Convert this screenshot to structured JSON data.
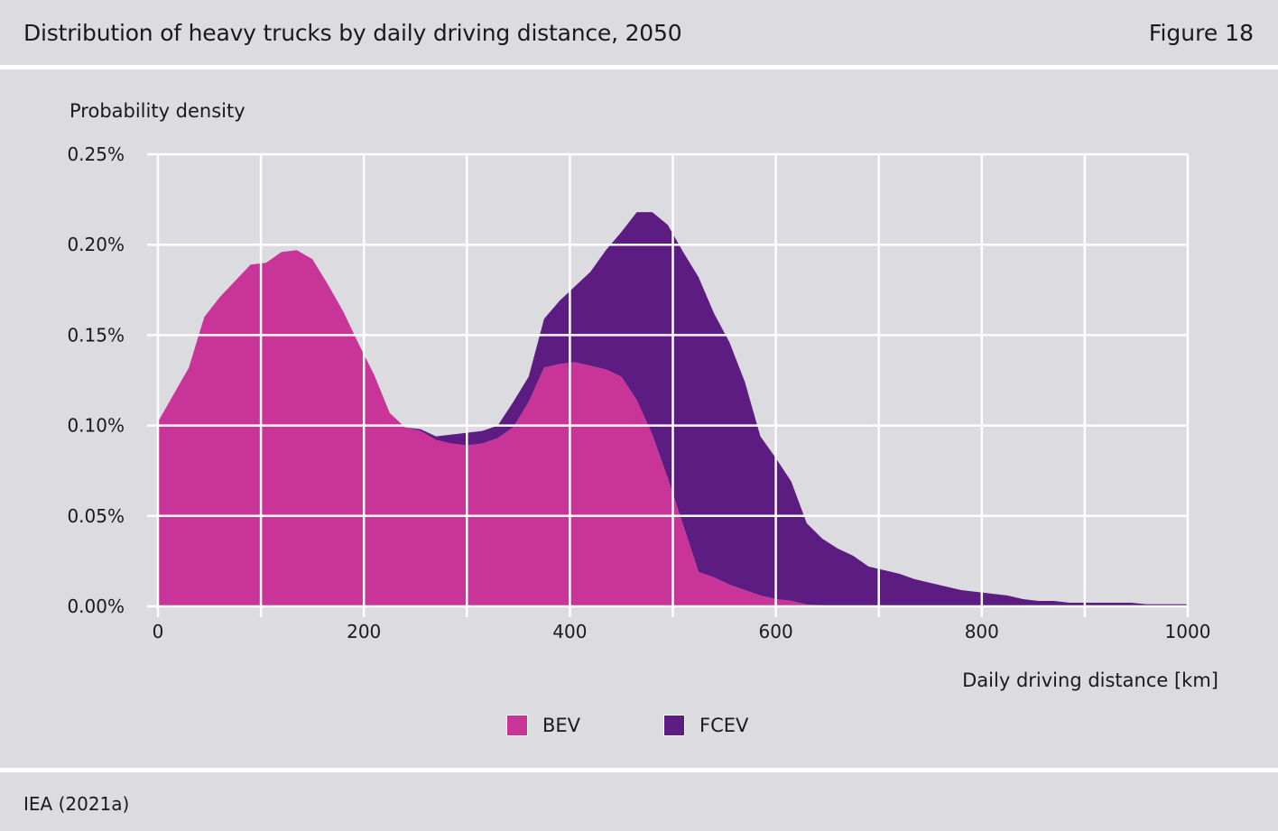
{
  "header": {
    "title": "Distribution of heavy trucks by daily driving distance, 2050",
    "figure_number": "Figure 18"
  },
  "footer": {
    "source": "IEA (2021a)"
  },
  "colors": {
    "background": "#dcdbe0",
    "grid": "#ffffff",
    "bev": "#c93499",
    "fcev": "#5c1c82"
  },
  "chart_data": {
    "type": "area",
    "stacked": true,
    "ylabel": "Probability density",
    "xlabel": "Daily driving distance [km]",
    "xlim": [
      0,
      1000
    ],
    "ylim": [
      0,
      0.25
    ],
    "x_ticks": [
      "0",
      "200",
      "400",
      "600",
      "800",
      "1000"
    ],
    "y_ticks": [
      "0.00%",
      "0.05%",
      "0.10%",
      "0.15%",
      "0.20%",
      "0.25%"
    ],
    "grid": true,
    "legend_position": "bottom-center",
    "x": [
      0,
      15,
      30,
      45,
      60,
      75,
      90,
      105,
      120,
      135,
      150,
      165,
      180,
      195,
      210,
      225,
      240,
      255,
      270,
      285,
      300,
      315,
      330,
      345,
      360,
      375,
      390,
      405,
      420,
      435,
      450,
      465,
      480,
      495,
      510,
      525,
      540,
      555,
      570,
      585,
      600,
      615,
      630,
      645,
      660,
      675,
      690,
      705,
      720,
      735,
      750,
      765,
      780,
      795,
      810,
      825,
      840,
      855,
      870,
      885,
      900,
      915,
      930,
      945,
      960,
      975,
      990,
      1000
    ],
    "series": [
      {
        "name": "BEV",
        "unit": "%",
        "values": [
          0.102,
          0.117,
          0.132,
          0.16,
          0.171,
          0.18,
          0.189,
          0.19,
          0.196,
          0.197,
          0.192,
          0.178,
          0.163,
          0.145,
          0.128,
          0.107,
          0.099,
          0.097,
          0.092,
          0.09,
          0.089,
          0.09,
          0.093,
          0.099,
          0.113,
          0.132,
          0.134,
          0.135,
          0.133,
          0.131,
          0.127,
          0.114,
          0.095,
          0.071,
          0.045,
          0.019,
          0.016,
          0.012,
          0.009,
          0.006,
          0.004,
          0.003,
          0.001,
          0.0005,
          0,
          0,
          0,
          0,
          0,
          0,
          0,
          0,
          0,
          0,
          0,
          0,
          0,
          0,
          0,
          0,
          0,
          0,
          0,
          0,
          0,
          0,
          0,
          0
        ]
      },
      {
        "name": "FCEV",
        "unit": "%",
        "values": [
          0,
          0,
          0,
          0,
          0,
          0,
          0,
          0,
          0,
          0,
          0,
          0,
          0,
          0,
          0,
          0,
          0,
          0.001,
          0.002,
          0.005,
          0.007,
          0.007,
          0.007,
          0.014,
          0.014,
          0.027,
          0.035,
          0.042,
          0.052,
          0.066,
          0.08,
          0.104,
          0.123,
          0.14,
          0.151,
          0.163,
          0.146,
          0.134,
          0.115,
          0.088,
          0.078,
          0.066,
          0.045,
          0.037,
          0.032,
          0.028,
          0.022,
          0.02,
          0.018,
          0.015,
          0.013,
          0.011,
          0.009,
          0.008,
          0.007,
          0.006,
          0.004,
          0.003,
          0.003,
          0.002,
          0.002,
          0.002,
          0.002,
          0.002,
          0.0012,
          0.0012,
          0.0012,
          0.0012
        ]
      }
    ]
  }
}
